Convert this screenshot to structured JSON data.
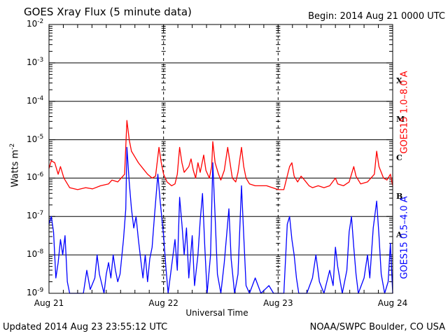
{
  "header": {
    "title": "GOES Xray Flux (5 minute data)",
    "begin": "Begin:  2014 Aug 21 0000 UTC"
  },
  "footer": {
    "updated": "Updated 2014 Aug 23 23:55:12 UTC",
    "credit": "NOAA/SWPC Boulder, CO USA"
  },
  "chart_data": {
    "type": "line",
    "ylabel": "Watts m^-2",
    "xlabel": "Universal Time",
    "x_ticks": [
      "Aug 21",
      "Aug 22",
      "Aug 23",
      "Aug 24"
    ],
    "y_ticks": [
      {
        "base": "10",
        "exp": "-2"
      },
      {
        "base": "10",
        "exp": "-3"
      },
      {
        "base": "10",
        "exp": "-4"
      },
      {
        "base": "10",
        "exp": "-5"
      },
      {
        "base": "10",
        "exp": "-6"
      },
      {
        "base": "10",
        "exp": "-7"
      },
      {
        "base": "10",
        "exp": "-8"
      },
      {
        "base": "10",
        "exp": "-9"
      }
    ],
    "ylim": [
      -9,
      -2
    ],
    "y_scale": "log",
    "xlim_days": [
      0,
      3
    ],
    "flare_classes": [
      {
        "label": "X",
        "log_level": -4
      },
      {
        "label": "M",
        "log_level": -5
      },
      {
        "label": "C",
        "log_level": -6
      },
      {
        "label": "B",
        "log_level": -7
      },
      {
        "label": "A",
        "log_level": -8
      }
    ],
    "grid": true,
    "series": [
      {
        "name": "GOES15 1.0–8.0 A",
        "color": "#ff0000",
        "points": [
          [
            0.0,
            -5.75
          ],
          [
            0.02,
            -5.55
          ],
          [
            0.05,
            -5.6
          ],
          [
            0.08,
            -5.9
          ],
          [
            0.1,
            -5.7
          ],
          [
            0.13,
            -6.0
          ],
          [
            0.18,
            -6.25
          ],
          [
            0.25,
            -6.3
          ],
          [
            0.32,
            -6.25
          ],
          [
            0.38,
            -6.28
          ],
          [
            0.45,
            -6.2
          ],
          [
            0.52,
            -6.15
          ],
          [
            0.55,
            -6.05
          ],
          [
            0.6,
            -6.1
          ],
          [
            0.63,
            -6.0
          ],
          [
            0.66,
            -5.9
          ],
          [
            0.68,
            -4.5
          ],
          [
            0.7,
            -5.0
          ],
          [
            0.72,
            -5.3
          ],
          [
            0.75,
            -5.45
          ],
          [
            0.78,
            -5.6
          ],
          [
            0.82,
            -5.75
          ],
          [
            0.86,
            -5.9
          ],
          [
            0.9,
            -6.0
          ],
          [
            0.93,
            -5.95
          ],
          [
            0.96,
            -5.2
          ],
          [
            0.98,
            -5.6
          ],
          [
            1.0,
            -5.9
          ],
          [
            1.03,
            -6.1
          ],
          [
            1.07,
            -6.2
          ],
          [
            1.1,
            -6.15
          ],
          [
            1.12,
            -5.9
          ],
          [
            1.14,
            -5.2
          ],
          [
            1.16,
            -5.6
          ],
          [
            1.18,
            -5.85
          ],
          [
            1.22,
            -5.7
          ],
          [
            1.24,
            -5.5
          ],
          [
            1.26,
            -5.8
          ],
          [
            1.28,
            -6.0
          ],
          [
            1.3,
            -5.6
          ],
          [
            1.32,
            -5.85
          ],
          [
            1.35,
            -5.4
          ],
          [
            1.37,
            -5.8
          ],
          [
            1.4,
            -6.0
          ],
          [
            1.42,
            -5.7
          ],
          [
            1.43,
            -5.05
          ],
          [
            1.45,
            -5.6
          ],
          [
            1.48,
            -5.9
          ],
          [
            1.5,
            -6.05
          ],
          [
            1.53,
            -5.8
          ],
          [
            1.56,
            -5.2
          ],
          [
            1.58,
            -5.6
          ],
          [
            1.6,
            -6.0
          ],
          [
            1.63,
            -6.1
          ],
          [
            1.65,
            -5.85
          ],
          [
            1.68,
            -5.2
          ],
          [
            1.7,
            -5.7
          ],
          [
            1.72,
            -6.0
          ],
          [
            1.75,
            -6.15
          ],
          [
            1.8,
            -6.2
          ],
          [
            1.85,
            -6.2
          ],
          [
            1.9,
            -6.2
          ],
          [
            1.95,
            -6.25
          ],
          [
            2.0,
            -6.3
          ],
          [
            2.05,
            -6.3
          ],
          [
            2.1,
            -5.7
          ],
          [
            2.12,
            -5.6
          ],
          [
            2.14,
            -5.95
          ],
          [
            2.17,
            -6.1
          ],
          [
            2.2,
            -5.95
          ],
          [
            2.23,
            -6.05
          ],
          [
            2.27,
            -6.2
          ],
          [
            2.3,
            -6.25
          ],
          [
            2.35,
            -6.2
          ],
          [
            2.4,
            -6.25
          ],
          [
            2.45,
            -6.2
          ],
          [
            2.5,
            -6.0
          ],
          [
            2.52,
            -6.15
          ],
          [
            2.57,
            -6.2
          ],
          [
            2.62,
            -6.1
          ],
          [
            2.66,
            -5.7
          ],
          [
            2.68,
            -5.95
          ],
          [
            2.72,
            -6.15
          ],
          [
            2.78,
            -6.1
          ],
          [
            2.84,
            -5.9
          ],
          [
            2.86,
            -5.3
          ],
          [
            2.88,
            -5.7
          ],
          [
            2.92,
            -6.0
          ],
          [
            2.95,
            -6.05
          ],
          [
            2.98,
            -5.9
          ],
          [
            3.0,
            -6.2
          ]
        ]
      },
      {
        "name": "GOES15 0.5–4.0 A",
        "color": "#0000ff",
        "points": [
          [
            0.0,
            -7.2
          ],
          [
            0.02,
            -7.0
          ],
          [
            0.04,
            -7.4
          ],
          [
            0.06,
            -8.6
          ],
          [
            0.08,
            -8.2
          ],
          [
            0.1,
            -7.6
          ],
          [
            0.12,
            -8.0
          ],
          [
            0.14,
            -7.5
          ],
          [
            0.16,
            -8.7
          ],
          [
            0.18,
            -9.0
          ],
          [
            0.3,
            -9.0
          ],
          [
            0.33,
            -8.4
          ],
          [
            0.36,
            -8.9
          ],
          [
            0.4,
            -8.6
          ],
          [
            0.42,
            -8.0
          ],
          [
            0.44,
            -8.5
          ],
          [
            0.48,
            -9.0
          ],
          [
            0.5,
            -8.5
          ],
          [
            0.52,
            -8.2
          ],
          [
            0.54,
            -8.6
          ],
          [
            0.56,
            -8.0
          ],
          [
            0.58,
            -8.4
          ],
          [
            0.6,
            -8.7
          ],
          [
            0.62,
            -8.5
          ],
          [
            0.65,
            -7.6
          ],
          [
            0.67,
            -6.8
          ],
          [
            0.68,
            -5.2
          ],
          [
            0.7,
            -6.1
          ],
          [
            0.72,
            -6.8
          ],
          [
            0.74,
            -7.3
          ],
          [
            0.76,
            -7.0
          ],
          [
            0.78,
            -7.6
          ],
          [
            0.8,
            -8.1
          ],
          [
            0.82,
            -8.6
          ],
          [
            0.84,
            -8.0
          ],
          [
            0.86,
            -8.7
          ],
          [
            0.88,
            -8.1
          ],
          [
            0.9,
            -7.8
          ],
          [
            0.92,
            -7.0
          ],
          [
            0.95,
            -5.9
          ],
          [
            0.97,
            -6.6
          ],
          [
            1.0,
            -7.5
          ],
          [
            1.02,
            -8.3
          ],
          [
            1.04,
            -9.0
          ],
          [
            1.07,
            -8.3
          ],
          [
            1.1,
            -7.6
          ],
          [
            1.12,
            -8.4
          ],
          [
            1.14,
            -6.5
          ],
          [
            1.16,
            -7.2
          ],
          [
            1.18,
            -8.0
          ],
          [
            1.2,
            -7.3
          ],
          [
            1.22,
            -8.6
          ],
          [
            1.25,
            -7.5
          ],
          [
            1.27,
            -8.8
          ],
          [
            1.3,
            -8.0
          ],
          [
            1.32,
            -7.1
          ],
          [
            1.34,
            -6.4
          ],
          [
            1.36,
            -7.8
          ],
          [
            1.38,
            -9.0
          ],
          [
            1.41,
            -8.0
          ],
          [
            1.43,
            -5.6
          ],
          [
            1.45,
            -7.0
          ],
          [
            1.47,
            -8.5
          ],
          [
            1.5,
            -9.0
          ],
          [
            1.53,
            -8.2
          ],
          [
            1.55,
            -7.5
          ],
          [
            1.57,
            -6.8
          ],
          [
            1.59,
            -8.1
          ],
          [
            1.62,
            -9.0
          ],
          [
            1.65,
            -8.5
          ],
          [
            1.68,
            -6.2
          ],
          [
            1.7,
            -7.5
          ],
          [
            1.72,
            -8.8
          ],
          [
            1.75,
            -9.0
          ],
          [
            1.8,
            -8.6
          ],
          [
            1.85,
            -9.0
          ],
          [
            1.92,
            -8.8
          ],
          [
            1.96,
            -9.0
          ],
          [
            2.0,
            -9.0
          ],
          [
            2.05,
            -9.0
          ],
          [
            2.08,
            -7.2
          ],
          [
            2.1,
            -7.0
          ],
          [
            2.12,
            -7.6
          ],
          [
            2.14,
            -8.0
          ],
          [
            2.16,
            -8.6
          ],
          [
            2.18,
            -9.0
          ],
          [
            2.25,
            -9.0
          ],
          [
            2.3,
            -8.6
          ],
          [
            2.33,
            -8.0
          ],
          [
            2.36,
            -8.7
          ],
          [
            2.4,
            -9.0
          ],
          [
            2.45,
            -8.4
          ],
          [
            2.48,
            -8.8
          ],
          [
            2.5,
            -7.8
          ],
          [
            2.52,
            -8.3
          ],
          [
            2.56,
            -9.0
          ],
          [
            2.6,
            -8.4
          ],
          [
            2.62,
            -7.4
          ],
          [
            2.64,
            -7.0
          ],
          [
            2.66,
            -7.8
          ],
          [
            2.68,
            -8.5
          ],
          [
            2.7,
            -9.0
          ],
          [
            2.75,
            -8.6
          ],
          [
            2.78,
            -8.0
          ],
          [
            2.8,
            -8.6
          ],
          [
            2.83,
            -7.3
          ],
          [
            2.86,
            -6.6
          ],
          [
            2.88,
            -7.5
          ],
          [
            2.9,
            -8.5
          ],
          [
            2.93,
            -9.0
          ],
          [
            2.96,
            -8.7
          ],
          [
            2.98,
            -7.7
          ],
          [
            3.0,
            -9.0
          ]
        ]
      }
    ]
  }
}
